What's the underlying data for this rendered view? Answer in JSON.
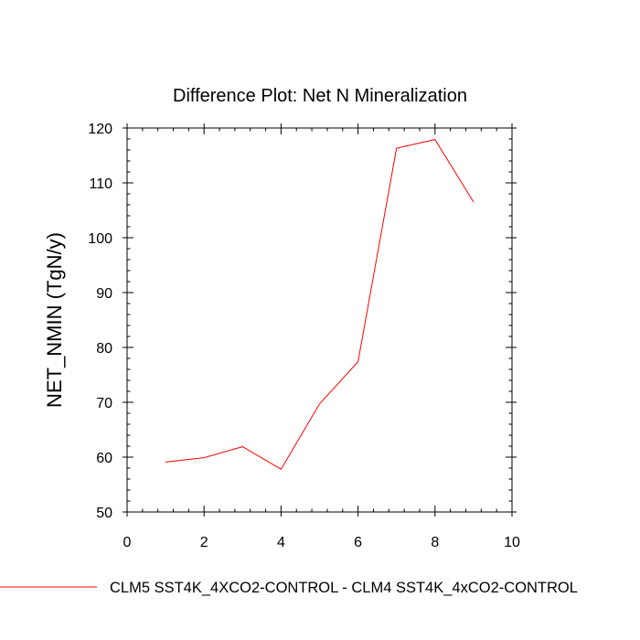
{
  "chart_data": {
    "type": "line",
    "title": "Difference Plot: Net N Mineralization",
    "xlabel": "",
    "ylabel": "NET_NMIN  (TgN/y)",
    "xlim": [
      0,
      10
    ],
    "ylim": [
      50,
      120
    ],
    "x_ticks": [
      0,
      2,
      4,
      6,
      8,
      10
    ],
    "y_ticks": [
      50,
      60,
      70,
      80,
      90,
      100,
      110,
      120
    ],
    "x_tick_labels": [
      "0",
      "2",
      "4",
      "6",
      "8",
      "10"
    ],
    "y_tick_labels": [
      "50",
      "60",
      "70",
      "80",
      "90",
      "100",
      "110",
      "120"
    ],
    "grid": false,
    "legend_position": "bottom",
    "series": [
      {
        "name": "CLM5 SST4K_4XCO2-CONTROL - CLM4 SST4K_4xCO2-CONTROL",
        "color": "#ff0000",
        "x": [
          1,
          2,
          3,
          4,
          5,
          6,
          7,
          8,
          9
        ],
        "values": [
          59.1,
          59.9,
          61.9,
          57.8,
          69.7,
          77.4,
          116.3,
          117.9,
          106.5
        ]
      }
    ]
  }
}
